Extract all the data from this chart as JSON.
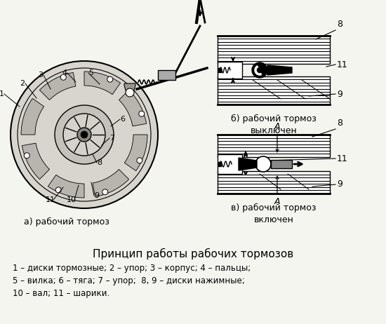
{
  "title": "Принцип работы рабочих тормозов",
  "caption_line1": "1 – диски тормозные; 2 – упор; 3 – корпус; 4 – пальцы;",
  "caption_line2": "5 – вилка; 6 – тяга; 7 – упор;  8, 9 – диски нажимные;",
  "caption_line3": "10 – вал; 11 – шарики.",
  "label_a": "а) рабочий тормоз",
  "label_b": "б) рабочий тормоз\nвыключен",
  "label_v": "в) рабочий тормоз\nвключен",
  "bg_color": "#f5f5f0",
  "text_color": "#000000",
  "fig_width": 5.5,
  "fig_height": 4.62,
  "dpi": 100
}
